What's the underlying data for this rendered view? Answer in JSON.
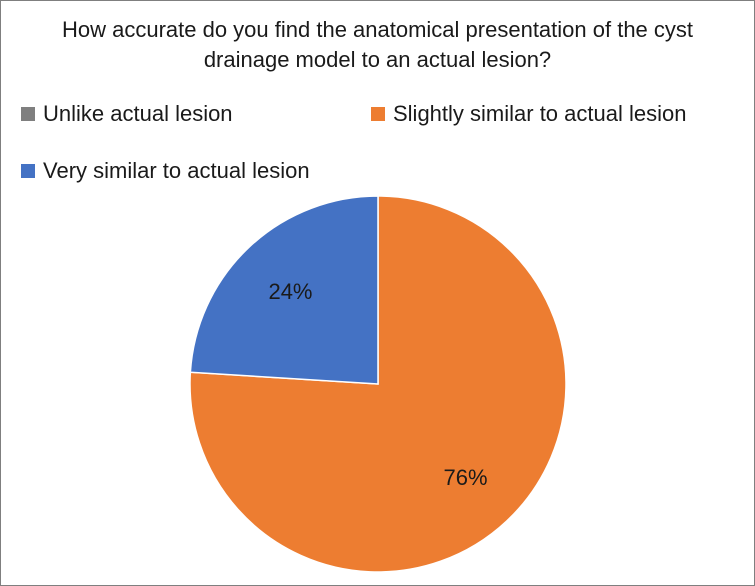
{
  "chart_data": {
    "type": "pie",
    "title": "How accurate do you find the anatomical presentation of the cyst drainage model to an actual lesion?",
    "legend_position": "top",
    "slices": [
      {
        "label": "Unlike actual lesion",
        "value": 0,
        "data_label": "",
        "color": "#7f7f7f"
      },
      {
        "label": "Slightly similar to actual lesion",
        "value": 76,
        "data_label": "76%",
        "color": "#ed7d31"
      },
      {
        "label": "Very similar to actual lesion",
        "value": 24,
        "data_label": "24%",
        "color": "#4472c4"
      }
    ]
  }
}
